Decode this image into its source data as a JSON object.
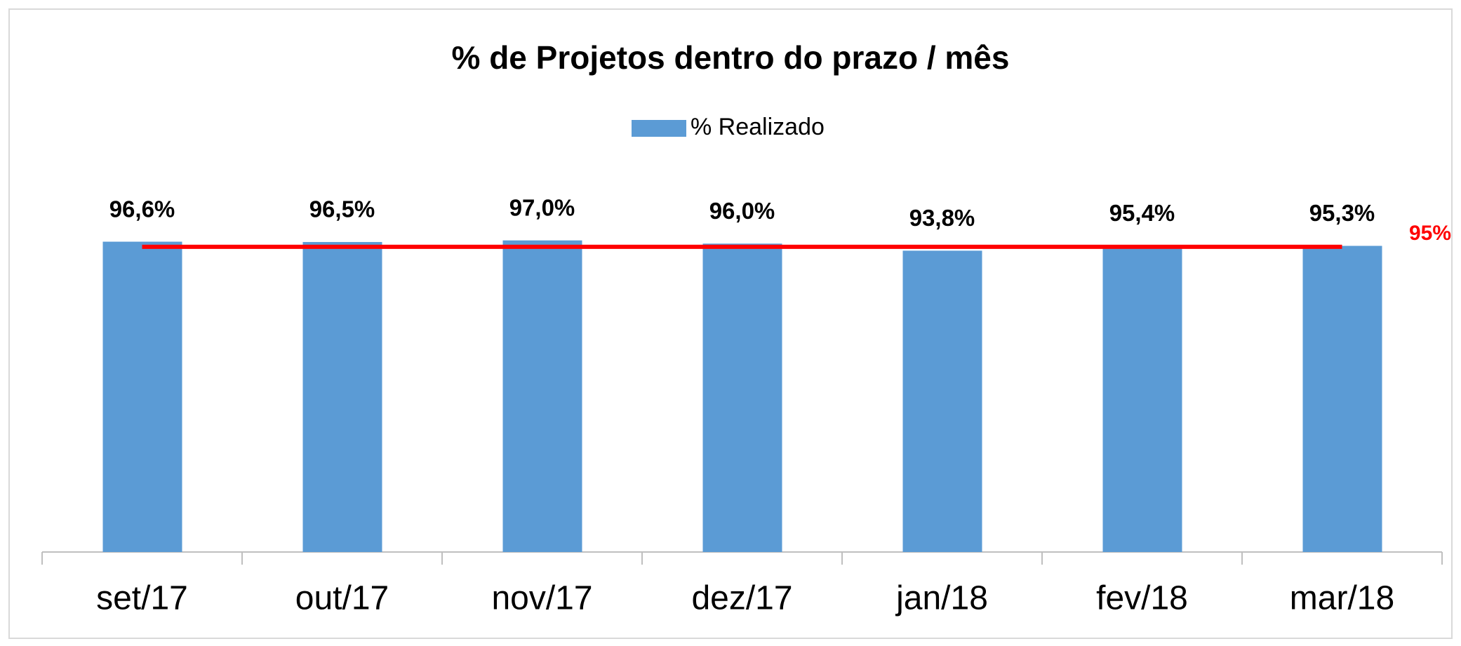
{
  "chart_data": {
    "type": "bar",
    "title": "% de Projetos dentro do prazo / mês",
    "categories": [
      "set/17",
      "out/17",
      "nov/17",
      "dez/17",
      "jan/18",
      "fev/18",
      "mar/18"
    ],
    "series": [
      {
        "name": "% Realizado",
        "color": "#5b9bd5",
        "values": [
          96.6,
          96.5,
          97.0,
          96.0,
          93.8,
          95.4,
          95.3
        ],
        "value_labels": [
          "96,6%",
          "96,5%",
          "97,0%",
          "96,0%",
          "93,8%",
          "95,4%",
          "95,3%"
        ]
      }
    ],
    "target": {
      "value": 95,
      "label": "95%",
      "color": "#ff0000"
    },
    "ylim": [
      0,
      100
    ],
    "legend": "top"
  }
}
